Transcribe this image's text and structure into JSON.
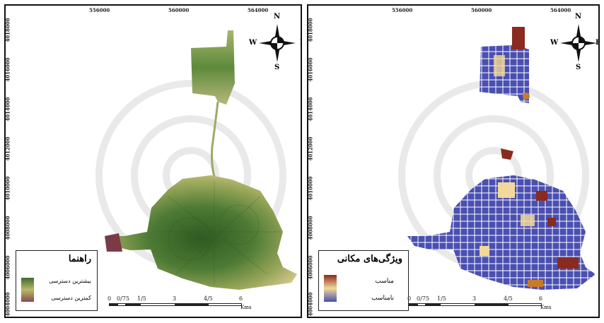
{
  "x_ticks": [
    "556000",
    "560000",
    "564000"
  ],
  "y_ticks": [
    "4018000",
    "4016000",
    "4014000",
    "4012000",
    "4010000",
    "4008000",
    "4006000",
    "4004000"
  ],
  "compass": {
    "n": "N",
    "s": "S",
    "e": "E",
    "w": "W"
  },
  "left_map": {
    "legend_title": "راهنما",
    "legend_high": "بیشترین دسترسی",
    "legend_low": "کمترین دسترسی",
    "colors": {
      "high": "#3f6b2a",
      "mid": "#b8b86a",
      "low": "#8a4a4e"
    }
  },
  "right_map": {
    "legend_title": "ویژگی‌های مکانی",
    "legend_high": "مناسب",
    "legend_low": "نامناسب",
    "colors": {
      "high": "#8b2a1e",
      "mid": "#f2d89a",
      "low": "#4a4fb0"
    }
  },
  "scale": {
    "labels": [
      "0",
      "0/75",
      "1/5",
      "3",
      "4/5",
      "6"
    ],
    "unit": "Kms"
  }
}
